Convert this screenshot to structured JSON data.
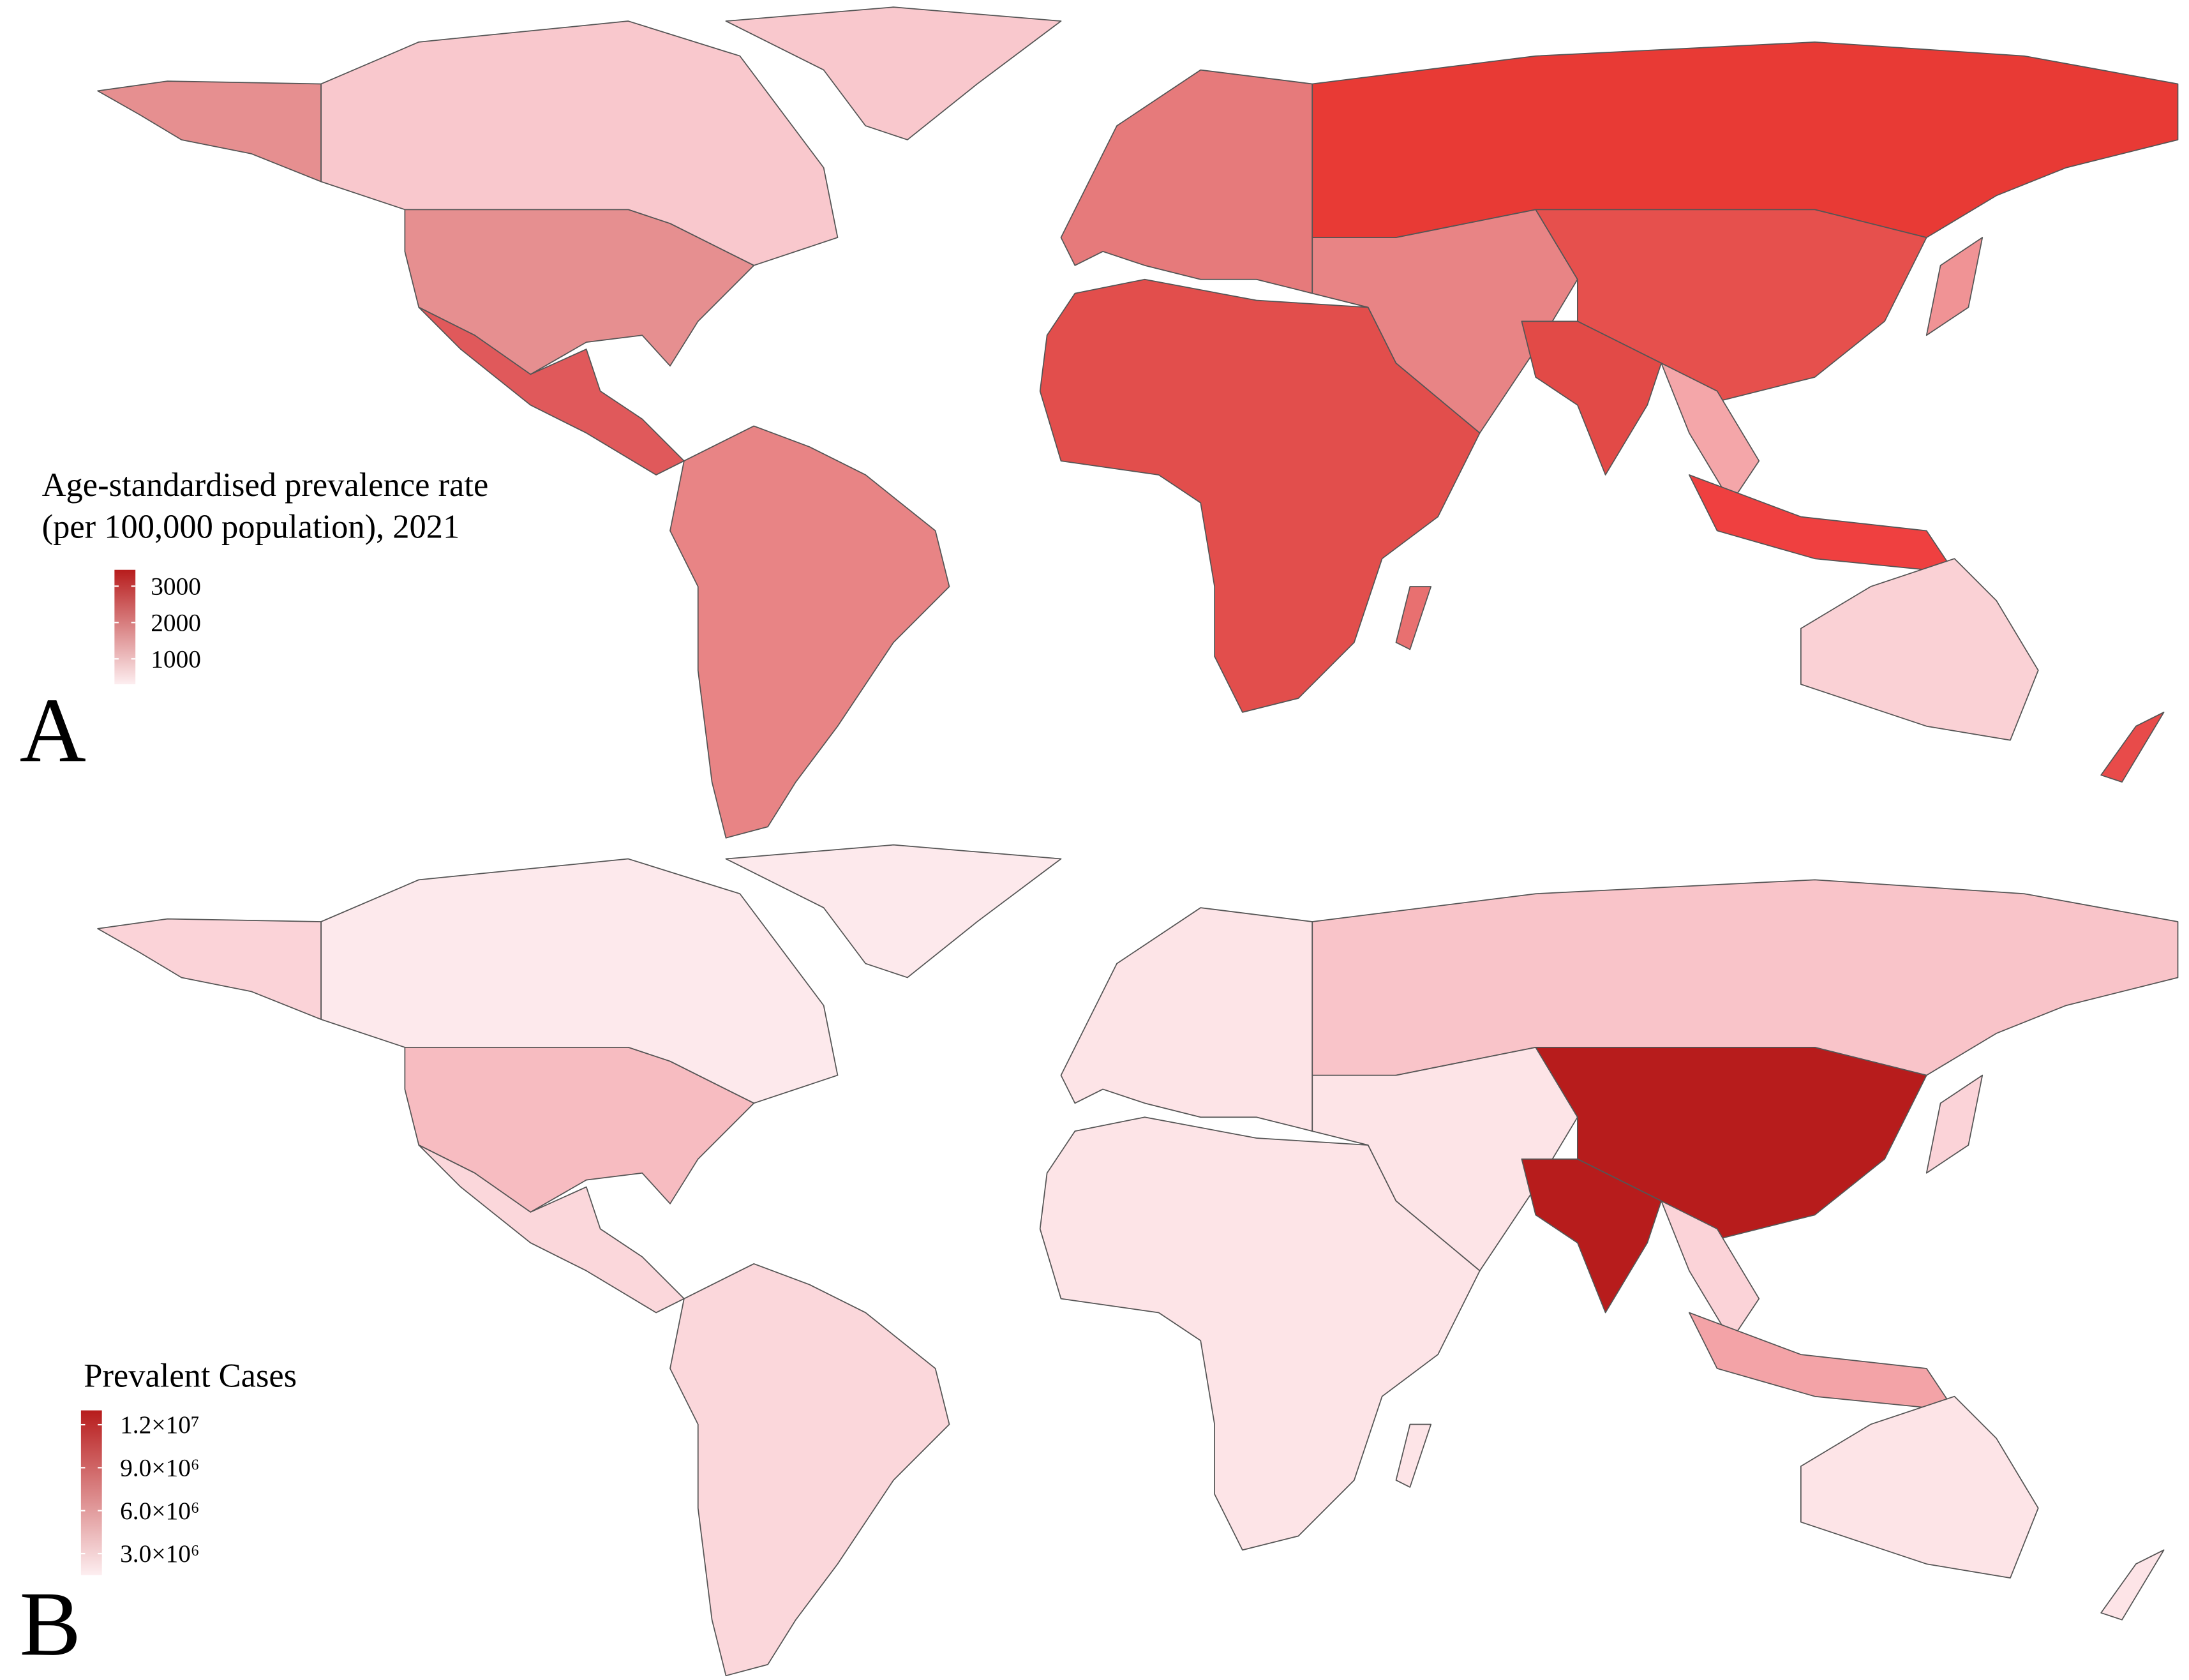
{
  "panels": [
    {
      "label": "A",
      "legend": {
        "title_lines": [
          "Age-standardised prevalence rate",
          "(per 100,000 population), 2021"
        ],
        "lim": [
          300,
          3450
        ],
        "ticks": [
          1000,
          2000,
          3000
        ],
        "colors": [
          "#fdeef0",
          "#b71c1c"
        ]
      }
    },
    {
      "label": "B",
      "legend": {
        "title_lines": [
          "Prevalent Cases"
        ],
        "lim": [
          1500000,
          13000000
        ],
        "ticks": [
          {
            "value": 3000000,
            "label": "3.0×10⁶"
          },
          {
            "value": 6000000,
            "label": "6.0×10⁶"
          },
          {
            "value": 9000000,
            "label": "9.0×10⁶"
          },
          {
            "value": 12000000,
            "label": "1.2×10⁷"
          }
        ],
        "colors": [
          "#fdeef0",
          "#b71c1c"
        ]
      }
    }
  ]
}
